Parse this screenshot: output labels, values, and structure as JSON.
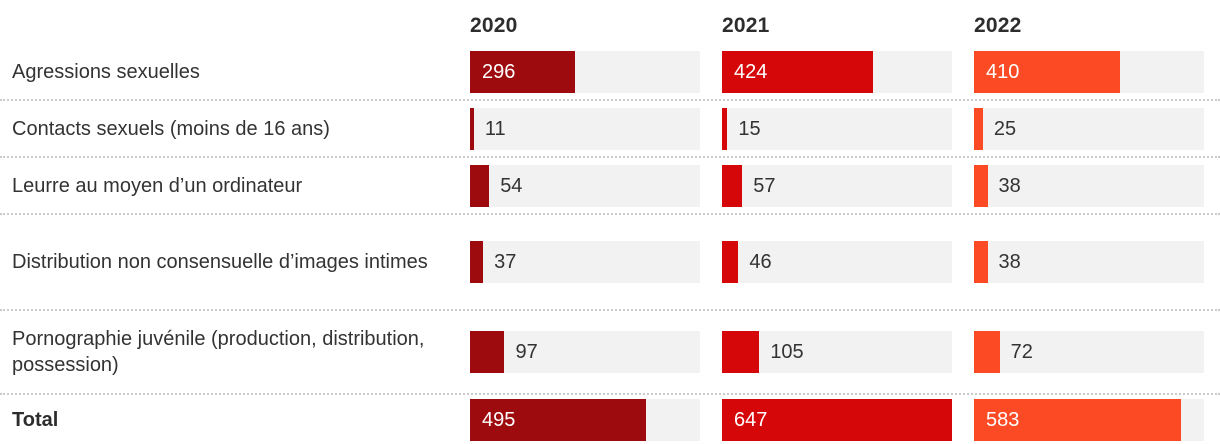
{
  "colors": {
    "bar_2020": "#9e0b0e",
    "bar_2021": "#d50709",
    "bar_2022": "#fb4a24",
    "track": "#f2f2f2",
    "label_text": "#333333",
    "heading_text": "#2d2d2d",
    "value_inside": "#ffffff",
    "separator": "#cbcbcb"
  },
  "chart_data": {
    "type": "bar",
    "title": "",
    "orientation": "horizontal",
    "columns": [
      "2020",
      "2021",
      "2022"
    ],
    "series_colors": [
      "#9e0b0e",
      "#d50709",
      "#fb4a24"
    ],
    "max_value": 647,
    "inside_label_threshold": 200,
    "rows": [
      {
        "label": "Agressions sexuelles",
        "values": [
          296,
          424,
          410
        ],
        "bold": false
      },
      {
        "label": "Contacts sexuels (moins de 16 ans)",
        "values": [
          11,
          15,
          25
        ],
        "bold": false
      },
      {
        "label": "Leurre au moyen d’un ordinateur",
        "values": [
          54,
          57,
          38
        ],
        "bold": false
      },
      {
        "label": "Distribution non consensuelle d’images intimes",
        "values": [
          37,
          46,
          38
        ],
        "bold": false
      },
      {
        "label": "Pornographie juvénile (production, distribution, possession)",
        "values": [
          97,
          105,
          72
        ],
        "bold": false
      },
      {
        "label": "Total",
        "values": [
          495,
          647,
          583
        ],
        "bold": true
      }
    ]
  }
}
